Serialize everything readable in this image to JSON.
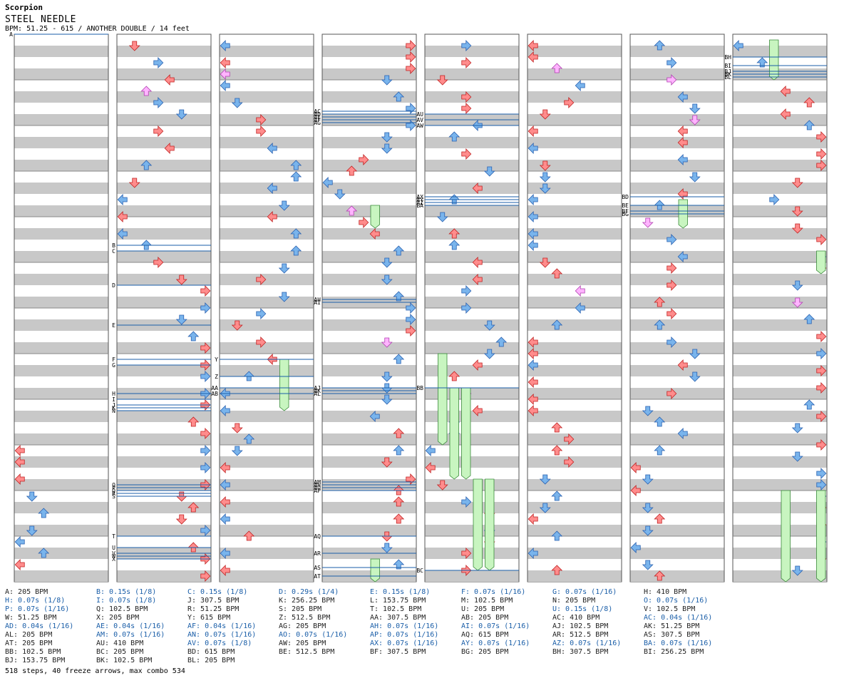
{
  "header": {
    "artist": "Scorpion",
    "title": "STEEL NEEDLE",
    "bpm_line": "BPM: 51.25 - 615 / ANOTHER DOUBLE / 14 feet"
  },
  "colors": {
    "red_arrow": "#ff8c8c",
    "red_stroke": "#c02020",
    "blue_arrow": "#79b4ec",
    "blue_stroke": "#2860b0",
    "freeze_fill": "#c8f5c0",
    "freeze_stroke": "#3a8a3a",
    "pink_arrow": "#ffb4ff",
    "pink_stroke": "#b040b0",
    "stripe": "#c8c8c8",
    "marker_line": "#1a5ea8"
  },
  "markers": [
    {
      "label": "A",
      "col": 0,
      "row": 0
    },
    {
      "label": "B",
      "col": 1,
      "row": 37
    },
    {
      "label": "C",
      "col": 1,
      "row": 38
    },
    {
      "label": "D",
      "col": 1,
      "row": 44
    },
    {
      "label": "E",
      "col": 1,
      "row": 51
    },
    {
      "label": "F",
      "col": 1,
      "row": 57
    },
    {
      "label": "G",
      "col": 1,
      "row": 58
    },
    {
      "label": "H",
      "col": 1,
      "row": 63
    },
    {
      "label": "I",
      "col": 1,
      "row": 64
    },
    {
      "label": "J",
      "col": 1,
      "row": 65
    },
    {
      "label": "K",
      "col": 1,
      "row": 65.5
    },
    {
      "label": "N",
      "col": 1,
      "row": 66
    },
    {
      "label": "O",
      "col": 1,
      "row": 79
    },
    {
      "label": "P",
      "col": 1,
      "row": 79.5
    },
    {
      "label": "Q",
      "col": 1,
      "row": 80
    },
    {
      "label": "R",
      "col": 1,
      "row": 80.5
    },
    {
      "label": "S",
      "col": 1,
      "row": 81
    },
    {
      "label": "T",
      "col": 1,
      "row": 88
    },
    {
      "label": "U",
      "col": 1,
      "row": 90
    },
    {
      "label": "V",
      "col": 1,
      "row": 91
    },
    {
      "label": "W",
      "col": 1,
      "row": 91.5
    },
    {
      "label": "X",
      "col": 1,
      "row": 92
    },
    {
      "label": "Y",
      "col": 2,
      "row": 57
    },
    {
      "label": "Z",
      "col": 2,
      "row": 60
    },
    {
      "label": "AA",
      "col": 2,
      "row": 62
    },
    {
      "label": "AB",
      "col": 2,
      "row": 63
    },
    {
      "label": "AC",
      "col": 3,
      "row": 13.5
    },
    {
      "label": "AD",
      "col": 3,
      "row": 14
    },
    {
      "label": "AE",
      "col": 3,
      "row": 14.5
    },
    {
      "label": "AF",
      "col": 3,
      "row": 15
    },
    {
      "label": "AG",
      "col": 3,
      "row": 15.5
    },
    {
      "label": "AH",
      "col": 3,
      "row": 46.5
    },
    {
      "label": "AI",
      "col": 3,
      "row": 47
    },
    {
      "label": "AJ",
      "col": 3,
      "row": 62
    },
    {
      "label": "AK",
      "col": 3,
      "row": 62.5
    },
    {
      "label": "AL",
      "col": 3,
      "row": 63
    },
    {
      "label": "AM",
      "col": 3,
      "row": 78.5
    },
    {
      "label": "AN",
      "col": 3,
      "row": 79
    },
    {
      "label": "AO",
      "col": 3,
      "row": 79.5
    },
    {
      "label": "AP",
      "col": 3,
      "row": 80
    },
    {
      "label": "AQ",
      "col": 3,
      "row": 88
    },
    {
      "label": "AR",
      "col": 3,
      "row": 91
    },
    {
      "label": "AS",
      "col": 3,
      "row": 93.5
    },
    {
      "label": "AT",
      "col": 3,
      "row": 95
    },
    {
      "label": "AU",
      "col": 4,
      "row": 14
    },
    {
      "label": "AV",
      "col": 4,
      "row": 15
    },
    {
      "label": "AW",
      "col": 4,
      "row": 16
    },
    {
      "label": "AX",
      "col": 4,
      "row": 28.5
    },
    {
      "label": "AY",
      "col": 4,
      "row": 29
    },
    {
      "label": "AZ",
      "col": 4,
      "row": 29.5
    },
    {
      "label": "BA",
      "col": 4,
      "row": 30
    },
    {
      "label": "BB",
      "col": 4,
      "row": 62
    },
    {
      "label": "BC",
      "col": 4,
      "row": 94
    },
    {
      "label": "BD",
      "col": 6,
      "row": 28.5
    },
    {
      "label": "BE",
      "col": 6,
      "row": 30
    },
    {
      "label": "BF",
      "col": 6,
      "row": 31
    },
    {
      "label": "BG",
      "col": 6,
      "row": 31.5
    },
    {
      "label": "BH",
      "col": 7,
      "row": 4
    },
    {
      "label": "BI",
      "col": 7,
      "row": 5.5
    },
    {
      "label": "BJ",
      "col": 7,
      "row": 6.5
    },
    {
      "label": "BK",
      "col": 7,
      "row": 7
    },
    {
      "label": "BL",
      "col": 7,
      "row": 7.5
    }
  ],
  "legend": [
    {
      "text": "A: 205 BPM",
      "c": "black"
    },
    {
      "text": "B: 0.15s (1/8)",
      "c": "blue"
    },
    {
      "text": "C: 0.15s (1/8)",
      "c": "blue"
    },
    {
      "text": "D: 0.29s (1/4)",
      "c": "blue"
    },
    {
      "text": "E: 0.15s (1/8)",
      "c": "blue"
    },
    {
      "text": "F: 0.07s (1/16)",
      "c": "blue"
    },
    {
      "text": "G: 0.07s (1/16)",
      "c": "blue"
    },
    {
      "text": "H: 410 BPM",
      "c": "black"
    },
    {
      "text": "H: 0.07s (1/8)",
      "c": "blue"
    },
    {
      "text": "I: 0.07s (1/8)",
      "c": "blue"
    },
    {
      "text": "J: 307.5 BPM",
      "c": "black"
    },
    {
      "text": "K: 256.25 BPM",
      "c": "black"
    },
    {
      "text": "L: 153.75 BPM",
      "c": "black"
    },
    {
      "text": "M: 102.5 BPM",
      "c": "black"
    },
    {
      "text": "N: 205 BPM",
      "c": "black"
    },
    {
      "text": "O: 0.07s (1/16)",
      "c": "blue"
    },
    {
      "text": "P: 0.07s (1/16)",
      "c": "blue"
    },
    {
      "text": "Q: 102.5 BPM",
      "c": "black"
    },
    {
      "text": "R: 51.25 BPM",
      "c": "black"
    },
    {
      "text": "S: 205 BPM",
      "c": "black"
    },
    {
      "text": "T: 102.5 BPM",
      "c": "black"
    },
    {
      "text": "U: 205 BPM",
      "c": "black"
    },
    {
      "text": "U: 0.15s (1/8)",
      "c": "blue"
    },
    {
      "text": "V: 102.5 BPM",
      "c": "black"
    },
    {
      "text": "W: 51.25 BPM",
      "c": "black"
    },
    {
      "text": "X: 205 BPM",
      "c": "black"
    },
    {
      "text": "Y: 615 BPM",
      "c": "black"
    },
    {
      "text": "Z: 512.5 BPM",
      "c": "black"
    },
    {
      "text": "AA: 307.5 BPM",
      "c": "black"
    },
    {
      "text": "AB: 205 BPM",
      "c": "black"
    },
    {
      "text": "AC: 410 BPM",
      "c": "black"
    },
    {
      "text": "AC: 0.04s (1/16)",
      "c": "blue"
    },
    {
      "text": "AD: 0.04s (1/16)",
      "c": "blue"
    },
    {
      "text": "AE: 0.04s (1/16)",
      "c": "blue"
    },
    {
      "text": "AF: 0.04s (1/16)",
      "c": "blue"
    },
    {
      "text": "AG: 205 BPM",
      "c": "black"
    },
    {
      "text": "AH: 0.07s (1/16)",
      "c": "blue"
    },
    {
      "text": "AI: 0.07s (1/16)",
      "c": "blue"
    },
    {
      "text": "AJ: 102.5 BPM",
      "c": "black"
    },
    {
      "text": "AK: 51.25 BPM",
      "c": "black"
    },
    {
      "text": "AL: 205 BPM",
      "c": "black"
    },
    {
      "text": "AM: 0.07s (1/16)",
      "c": "blue"
    },
    {
      "text": "AN: 0.07s (1/16)",
      "c": "blue"
    },
    {
      "text": "AO: 0.07s (1/16)",
      "c": "blue"
    },
    {
      "text": "AP: 0.07s (1/16)",
      "c": "blue"
    },
    {
      "text": "AQ: 615 BPM",
      "c": "black"
    },
    {
      "text": "AR: 512.5 BPM",
      "c": "black"
    },
    {
      "text": "AS: 307.5 BPM",
      "c": "black"
    },
    {
      "text": "AT: 205 BPM",
      "c": "black"
    },
    {
      "text": "AU: 410 BPM",
      "c": "black"
    },
    {
      "text": "AV: 0.07s (1/8)",
      "c": "blue"
    },
    {
      "text": "AW: 205 BPM",
      "c": "black"
    },
    {
      "text": "AX: 0.07s (1/16)",
      "c": "blue"
    },
    {
      "text": "AY: 0.07s (1/16)",
      "c": "blue"
    },
    {
      "text": "AZ: 0.07s (1/16)",
      "c": "blue"
    },
    {
      "text": "BA: 0.07s (1/16)",
      "c": "blue"
    },
    {
      "text": "BB: 102.5 BPM",
      "c": "black"
    },
    {
      "text": "BC: 205 BPM",
      "c": "black"
    },
    {
      "text": "BD: 615 BPM",
      "c": "black"
    },
    {
      "text": "BE: 512.5 BPM",
      "c": "black"
    },
    {
      "text": "BF: 307.5 BPM",
      "c": "black"
    },
    {
      "text": "BG: 205 BPM",
      "c": "black"
    },
    {
      "text": "BH: 307.5 BPM",
      "c": "black"
    },
    {
      "text": "BI: 256.25 BPM",
      "c": "black"
    },
    {
      "text": "BJ: 153.75 BPM",
      "c": "black"
    },
    {
      "text": "BK: 102.5 BPM",
      "c": "black"
    },
    {
      "text": "BL: 205 BPM",
      "c": "black"
    }
  ],
  "footer": "518 steps, 40 freeze arrows, max combo 534"
}
